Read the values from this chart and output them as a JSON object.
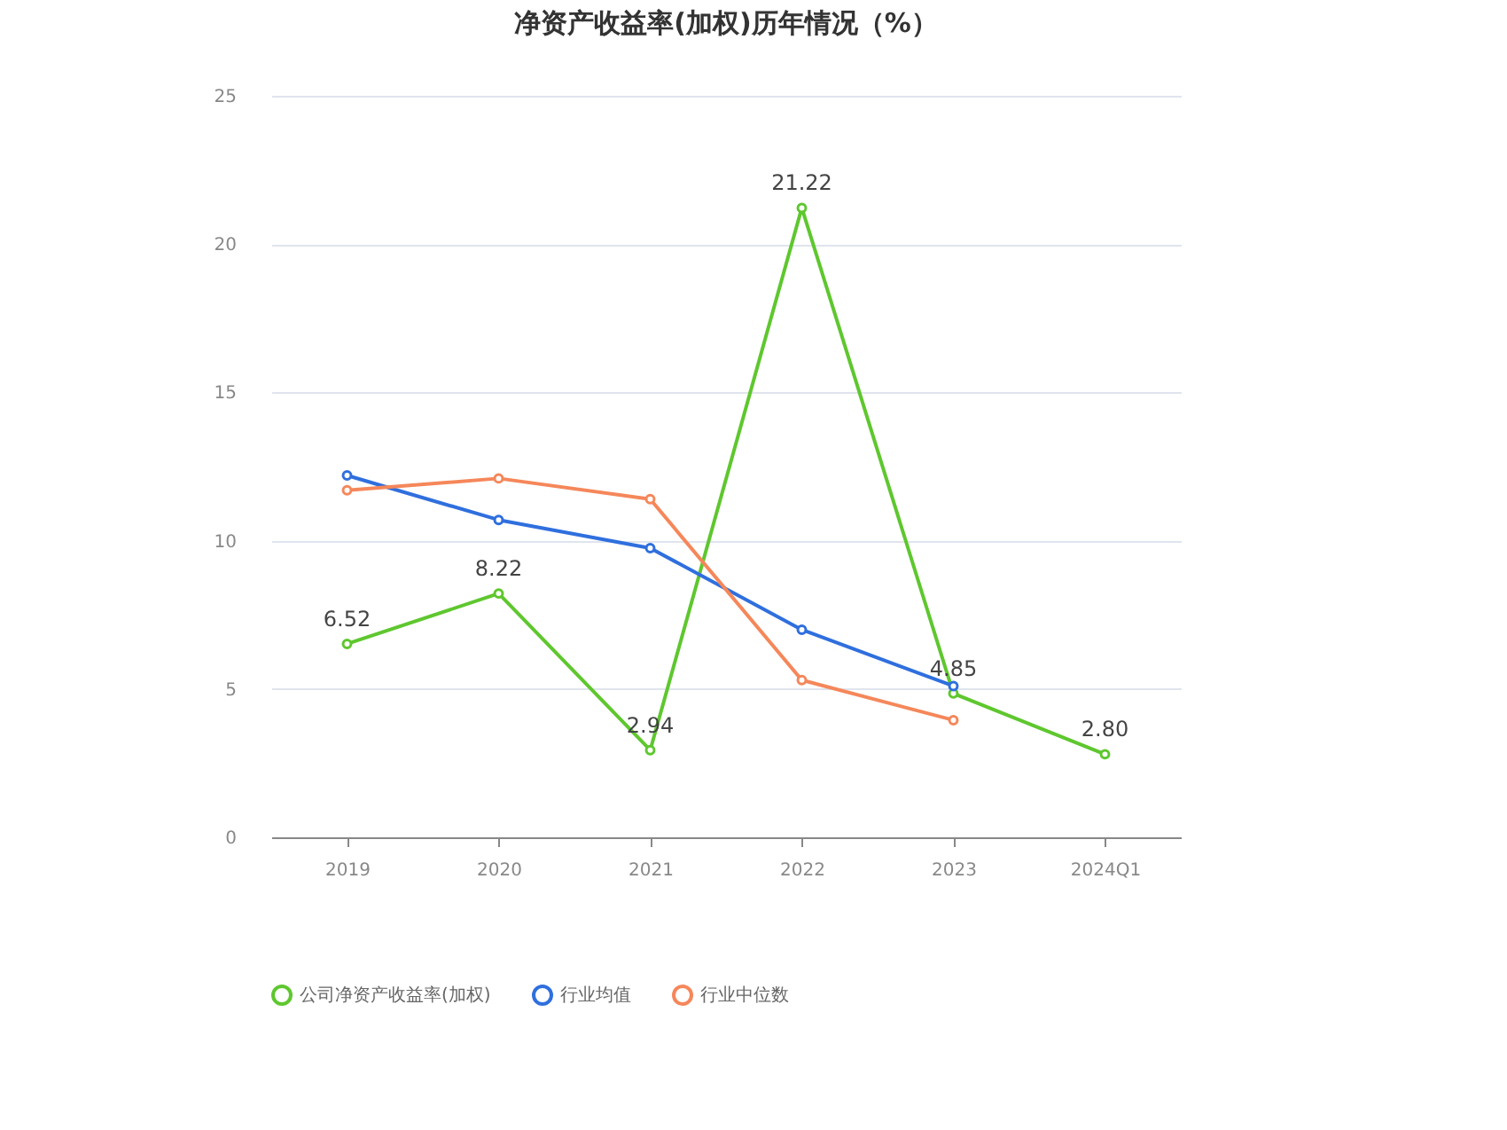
{
  "chart_data": {
    "type": "line",
    "title": "净资产收益率(加权)历年情况（%）",
    "categories": [
      "2019",
      "2020",
      "2021",
      "2022",
      "2023",
      "2024Q1"
    ],
    "series": [
      {
        "name": "公司净资产收益率(加权)",
        "color": "#5ec72e",
        "values": [
          6.52,
          8.22,
          2.94,
          21.22,
          4.85,
          2.8
        ],
        "value_labels": [
          "6.52",
          "8.22",
          "2.94",
          "21.22",
          "4.85",
          "2.80"
        ]
      },
      {
        "name": "行业均值",
        "color": "#2f6fde",
        "values": [
          12.2,
          10.7,
          9.75,
          7.0,
          5.1,
          null
        ]
      },
      {
        "name": "行业中位数",
        "color": "#f5875a",
        "values": [
          11.7,
          12.1,
          11.4,
          5.3,
          3.95,
          null
        ]
      }
    ],
    "ylim": [
      0,
      25
    ],
    "yticks": [
      0,
      5,
      10,
      15,
      20,
      25
    ],
    "grid": "y",
    "legend": "bottom",
    "marker": "circle",
    "line_style": "solid"
  }
}
